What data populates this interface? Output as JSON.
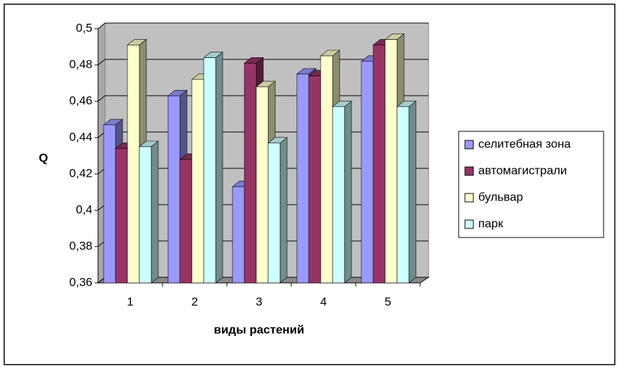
{
  "chart_data": {
    "type": "bar3d",
    "x_label": "виды растений",
    "y_label": "Q",
    "categories": [
      "1",
      "2",
      "3",
      "4",
      "5"
    ],
    "series": [
      {
        "name": "селитебная зона",
        "color": "#9999FF",
        "values": [
          0.447,
          0.463,
          0.413,
          0.475,
          0.482
        ]
      },
      {
        "name": "автомагистрали",
        "color": "#993366",
        "values": [
          0.434,
          0.428,
          0.481,
          0.474,
          0.491
        ]
      },
      {
        "name": "бульвар",
        "color": "#FFFFCC",
        "values": [
          0.491,
          0.472,
          0.468,
          0.485,
          0.494
        ]
      },
      {
        "name": "парк",
        "color": "#CCFFFF",
        "values": [
          0.435,
          0.484,
          0.437,
          0.457,
          0.457
        ]
      }
    ],
    "ylim": [
      0.36,
      0.5
    ],
    "yticks": [
      {
        "value": 0.36,
        "label": "0,36"
      },
      {
        "value": 0.38,
        "label": "0,38"
      },
      {
        "value": 0.4,
        "label": "0,4"
      },
      {
        "value": 0.42,
        "label": "0,42"
      },
      {
        "value": 0.44,
        "label": "0,44"
      },
      {
        "value": 0.46,
        "label": "0,46"
      },
      {
        "value": 0.48,
        "label": "0,48"
      },
      {
        "value": 0.5,
        "label": "0,5"
      }
    ],
    "grid": true,
    "legend": "right"
  }
}
